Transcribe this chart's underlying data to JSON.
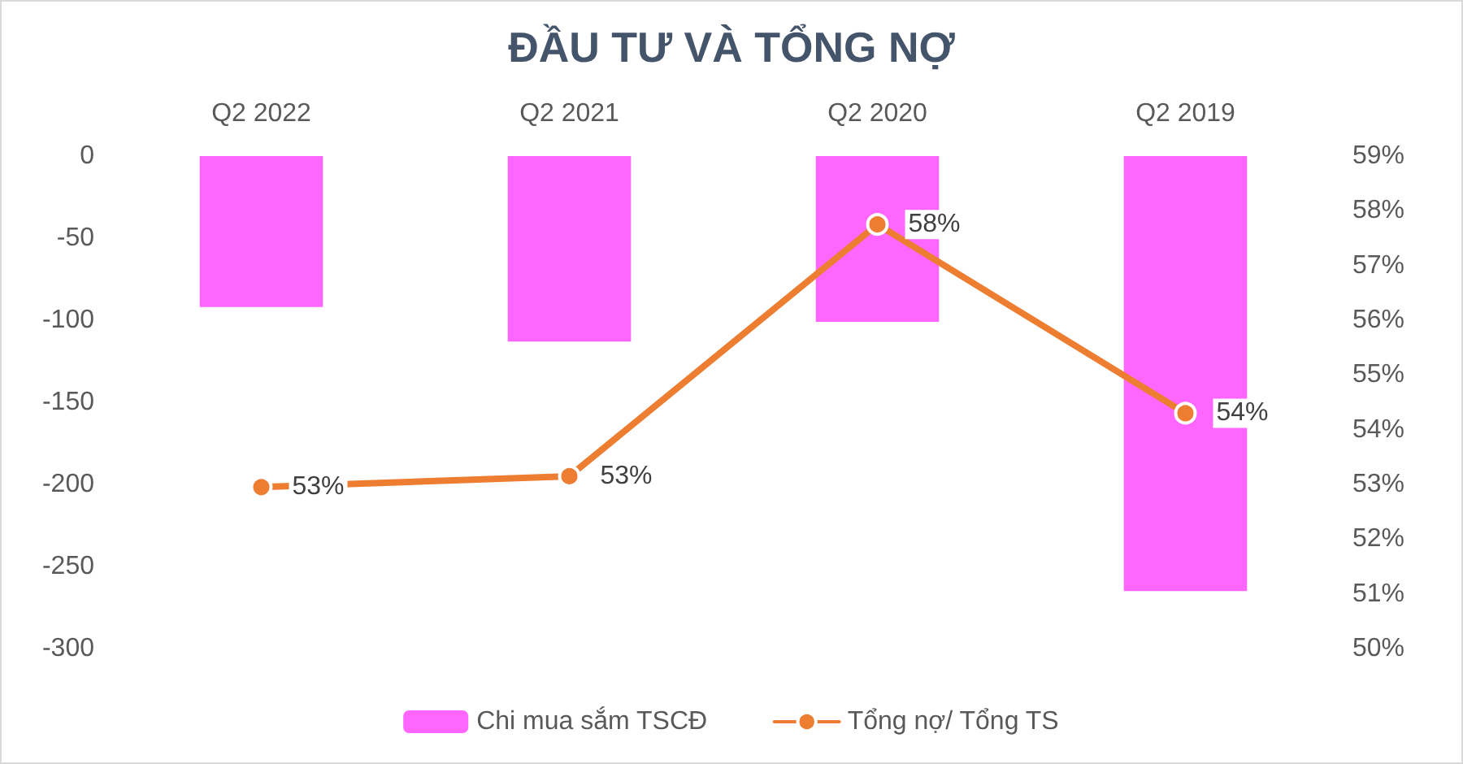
{
  "chart_data": {
    "type": "bar",
    "title": "ĐẦU TƯ VÀ TỔNG NỢ",
    "categories": [
      "Q2 2022",
      "Q2 2021",
      "Q2 2020",
      "Q2 2019"
    ],
    "series": [
      {
        "name": "Chi mua sắm TSCĐ",
        "color": "#ff66ff",
        "values": [
          -92,
          -113,
          -101,
          -265
        ]
      },
      {
        "name": "Tổng nợ/ Tổng TS",
        "type": "line",
        "axis": "y2",
        "color": "#ed7d31",
        "values": [
          52.95,
          53.15,
          57.75,
          54.3
        ],
        "value_labels": [
          "53%",
          "53%",
          "58%",
          "54%"
        ]
      }
    ],
    "ylim": [
      -300,
      0
    ],
    "yticks": [
      -300,
      -250,
      -200,
      -150,
      -100,
      -50,
      0
    ],
    "y2lim": [
      50,
      59
    ],
    "y2ticks": [
      {
        "value": 50,
        "label": "50%"
      },
      {
        "value": 51,
        "label": "51%"
      },
      {
        "value": 52,
        "label": "52%"
      },
      {
        "value": 53,
        "label": "53%"
      },
      {
        "value": 54,
        "label": "54%"
      },
      {
        "value": 55,
        "label": "55%"
      },
      {
        "value": 56,
        "label": "56%"
      },
      {
        "value": 57,
        "label": "57%"
      },
      {
        "value": 58,
        "label": "58%"
      },
      {
        "value": 59,
        "label": "59%"
      }
    ],
    "grid": false,
    "legend": "bottom",
    "marker": "circle",
    "line_style": "solid"
  }
}
